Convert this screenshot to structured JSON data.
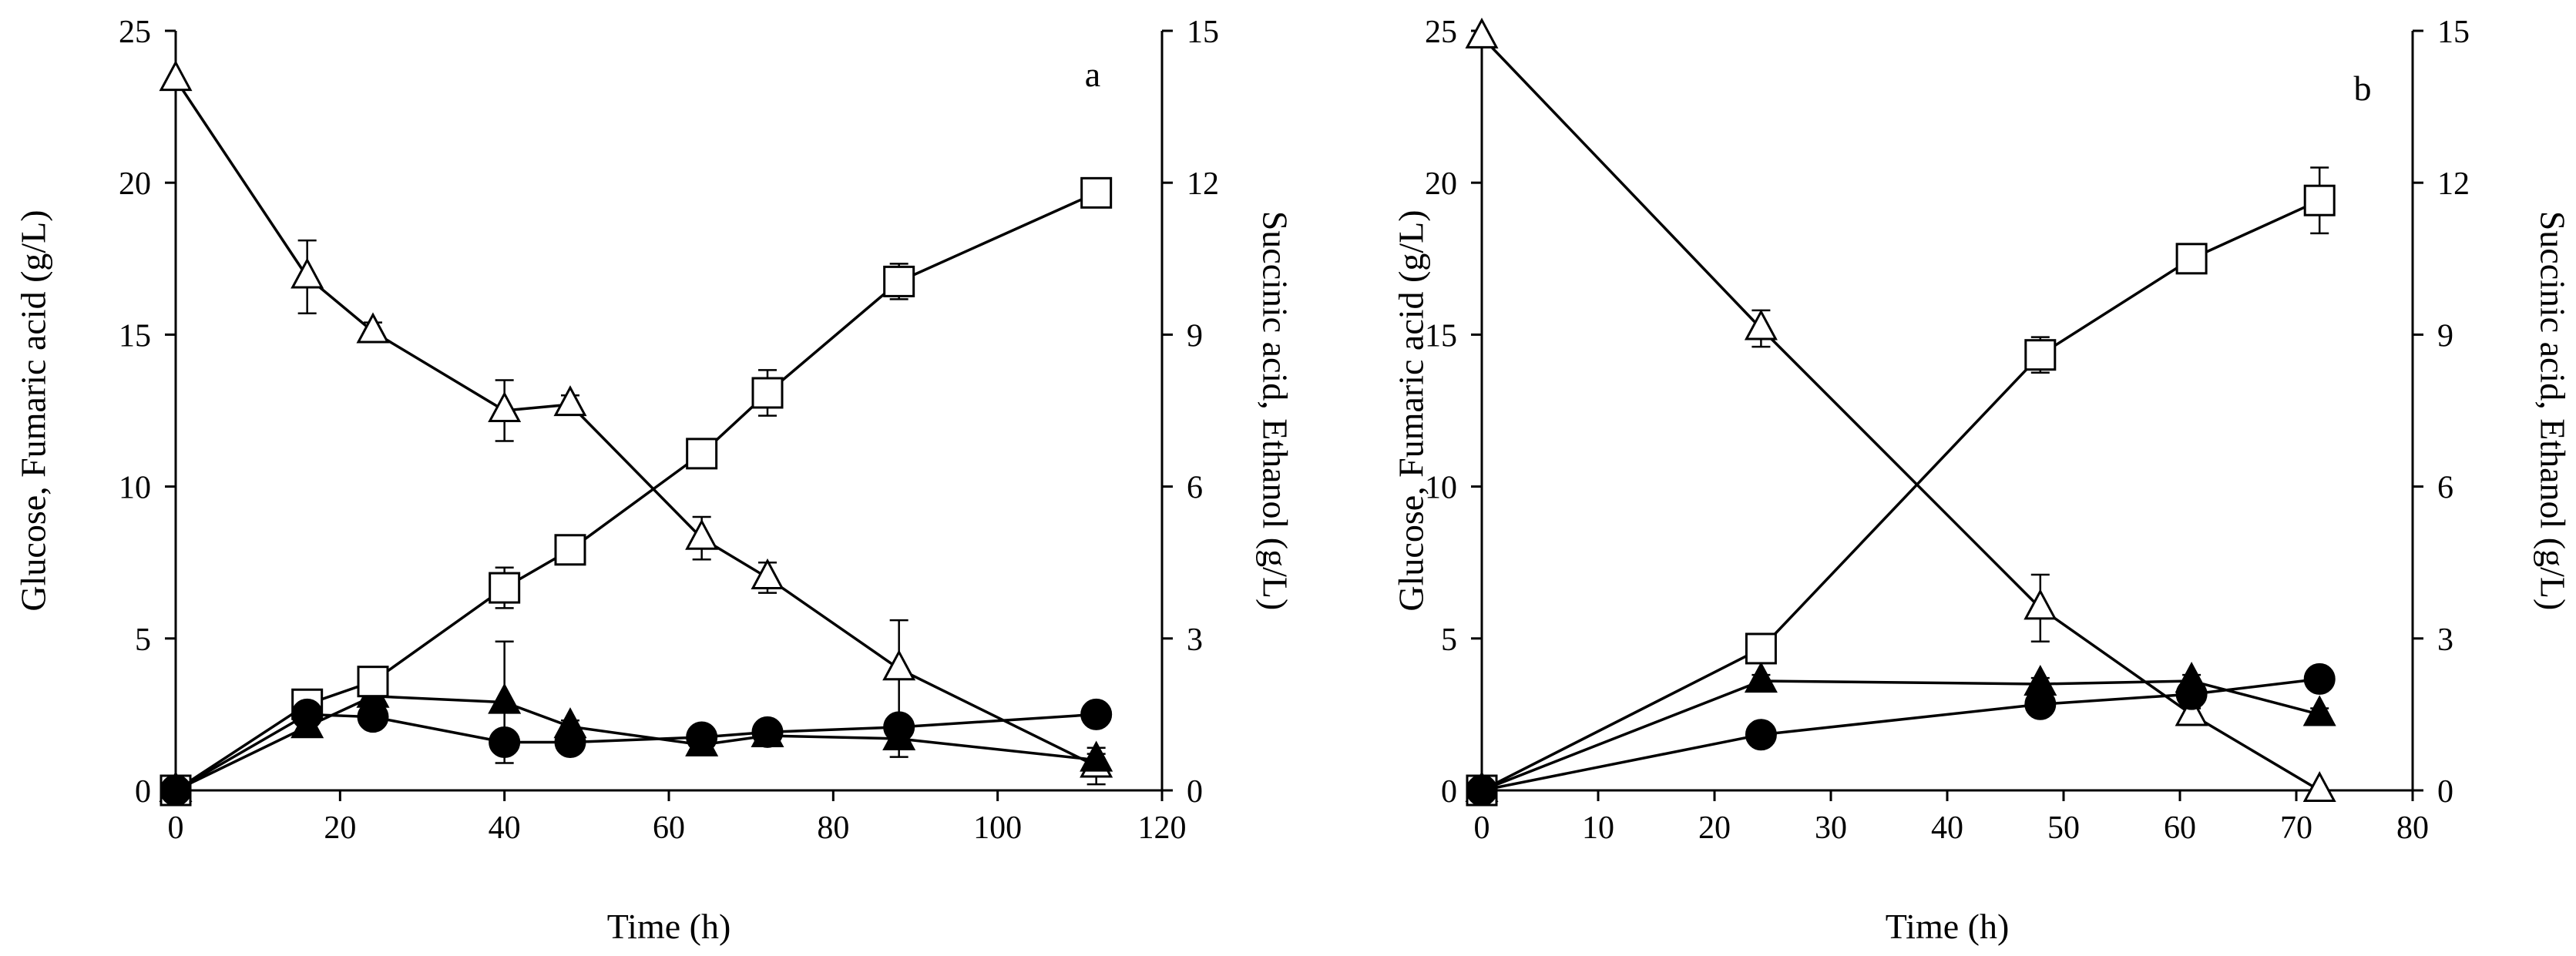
{
  "colors": {
    "ink": "#000000",
    "paper": "#ffffff"
  },
  "chart_data": [
    {
      "type": "line",
      "panel_label": "a",
      "xlabel": "Time (h)",
      "ylabel_left": "Glucose, Fumaric acid (g/L)",
      "ylabel_right": "Succinic acid, Ethanol (g/L)",
      "xlim": [
        0,
        120
      ],
      "ylim_left": [
        0,
        25
      ],
      "ylim_right": [
        0,
        15
      ],
      "x_ticks": [
        "0",
        "20",
        "40",
        "60",
        "80",
        "100",
        "120"
      ],
      "y_left_ticks": [
        "0",
        "5",
        "10",
        "15",
        "20",
        "25"
      ],
      "y_right_ticks": [
        "0",
        "3",
        "6",
        "9",
        "12",
        "15"
      ],
      "grid": false,
      "series": [
        {
          "name": "Glucose",
          "axis": "left",
          "marker": "open-triangle",
          "x": [
            0,
            16,
            24,
            40,
            48,
            64,
            72,
            88,
            112
          ],
          "y": [
            23.4,
            16.9,
            15.1,
            12.5,
            12.7,
            8.3,
            7.0,
            4.0,
            0.8
          ],
          "err": [
            0,
            1.2,
            0.3,
            1.0,
            0.3,
            0.7,
            0.5,
            1.6,
            0.6
          ]
        },
        {
          "name": "Fumaric acid",
          "axis": "left",
          "marker": "filled-triangle",
          "x": [
            0,
            16,
            24,
            40,
            48,
            64,
            72,
            88,
            112
          ],
          "y": [
            0,
            2.1,
            3.1,
            2.9,
            2.1,
            1.5,
            1.8,
            1.7,
            1.0
          ],
          "err": [
            0,
            0.2,
            0.3,
            2.0,
            0.2,
            0.2,
            0.2,
            0.6,
            0.2
          ]
        },
        {
          "name": "Succinic acid",
          "axis": "right",
          "marker": "open-square",
          "x": [
            0,
            16,
            24,
            40,
            48,
            64,
            72,
            88,
            112
          ],
          "y": [
            0,
            1.7,
            2.15,
            4.0,
            4.75,
            6.65,
            7.85,
            10.05,
            11.8
          ],
          "err": [
            0,
            0,
            0,
            0.4,
            0.15,
            0.2,
            0.45,
            0.35,
            0
          ]
        },
        {
          "name": "Ethanol",
          "axis": "right",
          "marker": "filled-circle",
          "x": [
            0,
            16,
            24,
            40,
            48,
            64,
            72,
            88,
            112
          ],
          "y": [
            0,
            1.5,
            1.45,
            0.95,
            0.95,
            1.05,
            1.15,
            1.25,
            1.5
          ],
          "err": [
            0,
            0,
            0,
            0,
            0,
            0,
            0,
            0,
            0
          ]
        }
      ]
    },
    {
      "type": "line",
      "panel_label": "b",
      "xlabel": "Time (h)",
      "ylabel_left": "Glucose, Fumaric acid (g/L)",
      "ylabel_right": "Succinic acid, Ethanol  (g/L)",
      "xlim": [
        0,
        80
      ],
      "ylim_left": [
        0,
        25
      ],
      "ylim_right": [
        0,
        15
      ],
      "x_ticks": [
        "0",
        "10",
        "20",
        "30",
        "40",
        "50",
        "60",
        "70",
        "80"
      ],
      "y_left_ticks": [
        "0",
        "5",
        "10",
        "15",
        "20",
        "25"
      ],
      "y_right_ticks": [
        "0",
        "3",
        "6",
        "9",
        "12",
        "15"
      ],
      "grid": false,
      "series": [
        {
          "name": "Glucose",
          "axis": "left",
          "marker": "open-triangle",
          "x": [
            0,
            24,
            48,
            61,
            72
          ],
          "y": [
            24.8,
            15.2,
            6.0,
            2.5,
            0
          ],
          "err": [
            0,
            0.6,
            1.1,
            0.2,
            0
          ]
        },
        {
          "name": "Fumaric acid",
          "axis": "left",
          "marker": "filled-triangle",
          "x": [
            0,
            24,
            48,
            61,
            72
          ],
          "y": [
            0,
            3.6,
            3.5,
            3.6,
            2.5
          ],
          "err": [
            0,
            0.2,
            0.2,
            0.2,
            0.2
          ]
        },
        {
          "name": "Succinic acid",
          "axis": "right",
          "marker": "open-square",
          "x": [
            0,
            24,
            48,
            61,
            72
          ],
          "y": [
            0,
            2.8,
            8.6,
            10.5,
            11.65
          ],
          "err": [
            0,
            0,
            0.35,
            0,
            0.65
          ]
        },
        {
          "name": "Ethanol",
          "axis": "right",
          "marker": "filled-circle",
          "x": [
            0,
            24,
            48,
            61,
            72
          ],
          "y": [
            0,
            1.1,
            1.7,
            1.9,
            2.2
          ],
          "err": [
            0,
            0,
            0.1,
            0.1,
            0
          ]
        }
      ]
    }
  ]
}
